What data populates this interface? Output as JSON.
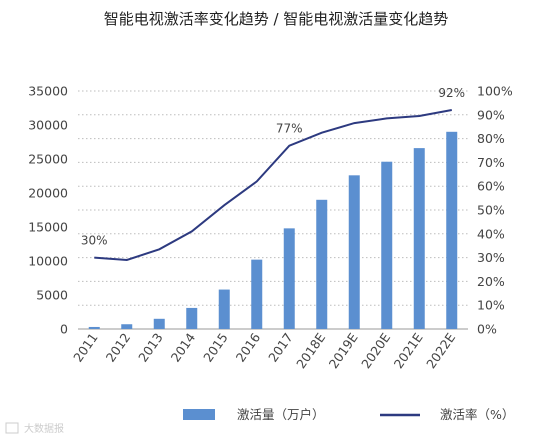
{
  "chart_data": {
    "type": "bar",
    "title": "智能电视激活率变化趋势 / 智能电视激活量变化趋势",
    "categories": [
      "2011",
      "2012",
      "2013",
      "2014",
      "2015",
      "2016",
      "2017",
      "2018E",
      "2019E",
      "2020E",
      "2021E",
      "2022E"
    ],
    "series": [
      {
        "name": "激活量（万户）",
        "type": "bar",
        "axis": "left",
        "color": "#5b8fd0",
        "values": [
          300,
          700,
          1500,
          3100,
          5800,
          10200,
          14800,
          19000,
          22600,
          24600,
          26600,
          29000
        ]
      },
      {
        "name": "激活率（%）",
        "type": "line",
        "axis": "right",
        "color": "#2d3a80",
        "values": [
          30,
          29,
          33.5,
          41,
          52,
          62,
          77,
          82.5,
          86.5,
          88.5,
          89.5,
          92
        ]
      }
    ],
    "annotations": [
      {
        "text": "30%",
        "category": "2011",
        "series": 1
      },
      {
        "text": "77%",
        "category": "2017",
        "series": 1
      },
      {
        "text": "92%",
        "category": "2022E",
        "series": 1
      }
    ],
    "y_left": {
      "min": 0,
      "max": 35000,
      "ticks": [
        "0",
        "5000",
        "10000",
        "15000",
        "20000",
        "25000",
        "30000",
        "35000"
      ]
    },
    "y_right": {
      "min": 0,
      "max": 100,
      "ticks": [
        "0%",
        "10%",
        "20%",
        "30%",
        "40%",
        "50%",
        "60%",
        "70%",
        "80%",
        "90%",
        "100%"
      ]
    },
    "grid": true,
    "legend_position": "bottom"
  },
  "watermark": "大数据报"
}
